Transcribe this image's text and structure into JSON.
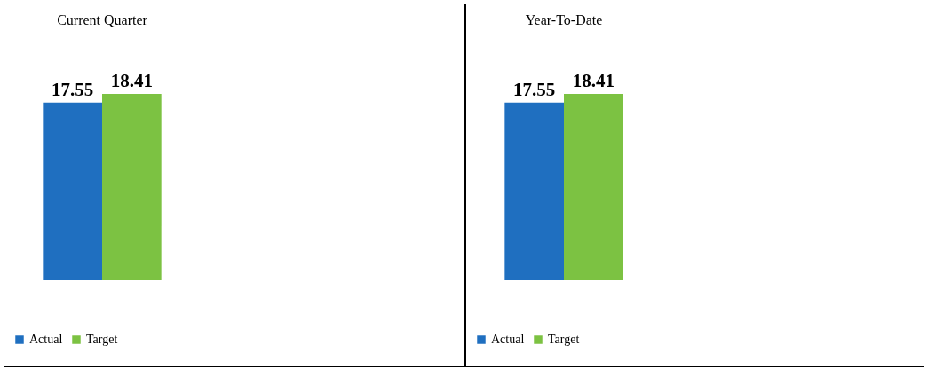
{
  "chart_data": [
    {
      "type": "bar",
      "title": "Current Quarter",
      "categories": [
        null
      ],
      "series": [
        {
          "name": "Actual",
          "color": "#1f6fc0",
          "values": [
            17.55
          ]
        },
        {
          "name": "Target",
          "color": "#7cc242",
          "values": [
            18.41
          ]
        }
      ],
      "data_labels": true,
      "legend": "bottom"
    },
    {
      "type": "bar",
      "title": "Year-To-Date",
      "categories": [
        null
      ],
      "series": [
        {
          "name": "Actual",
          "color": "#1f6fc0",
          "values": [
            17.55
          ]
        },
        {
          "name": "Target",
          "color": "#7cc242",
          "values": [
            18.41
          ]
        }
      ],
      "data_labels": true,
      "legend": "bottom"
    }
  ]
}
